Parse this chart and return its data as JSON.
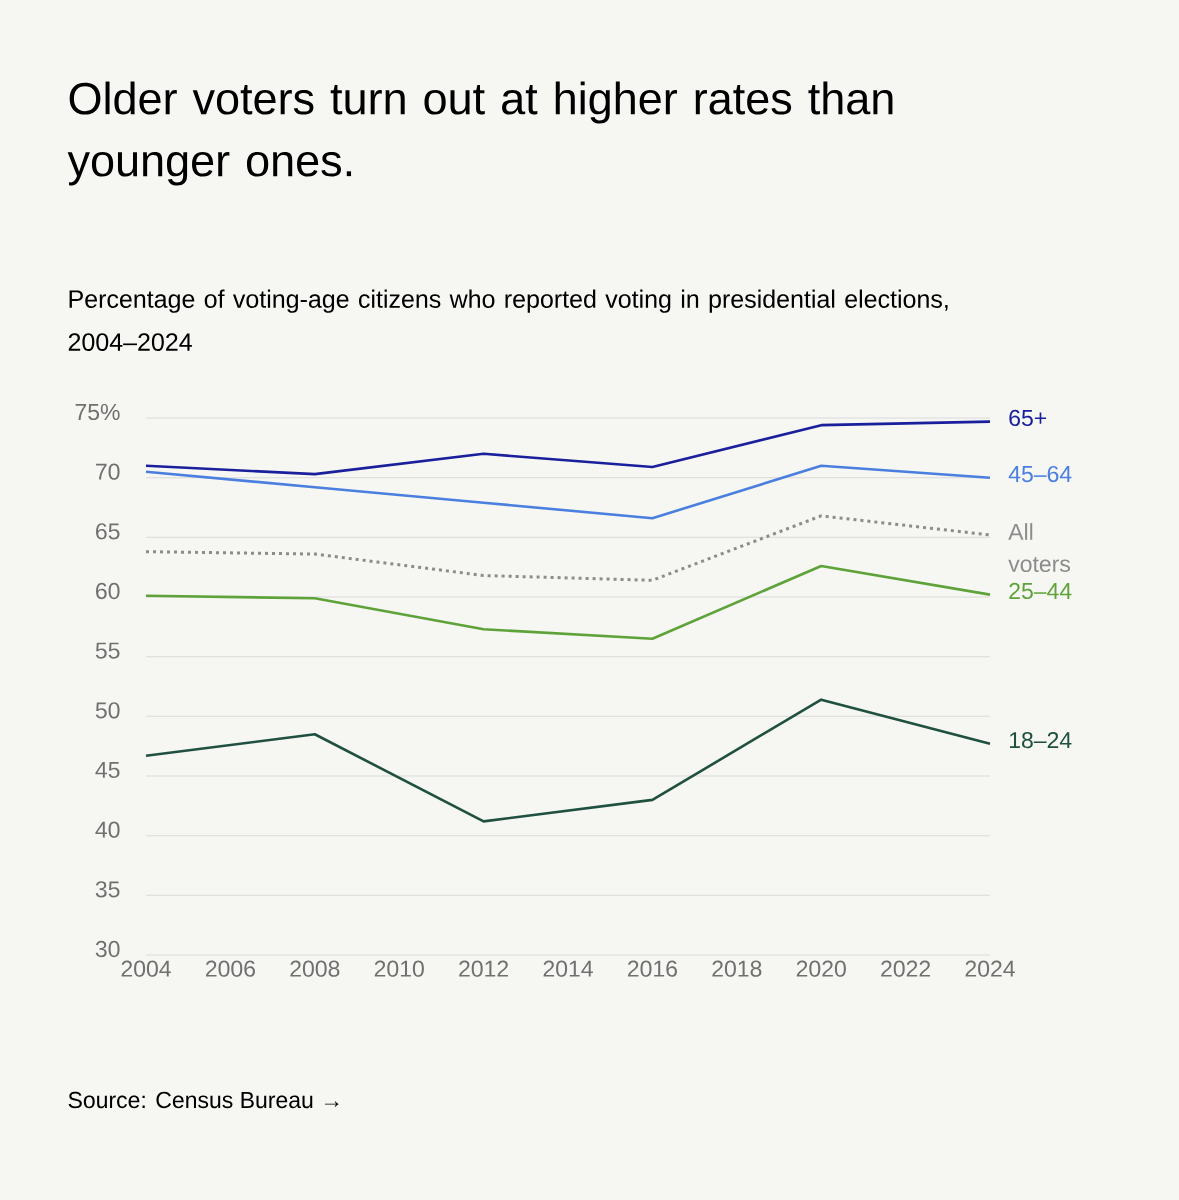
{
  "chart_data": {
    "type": "line",
    "title": "Older voters turn out at higher rates than younger ones.",
    "subtitle": "Percentage of voting-age citizens who reported voting in presidential elections, 2004–2024",
    "x": [
      2004,
      2008,
      2012,
      2016,
      2020,
      2024
    ],
    "series": [
      {
        "name": "65+",
        "color": "#1a1f9c",
        "values": [
          71.0,
          70.3,
          72.0,
          70.9,
          74.4,
          74.7
        ]
      },
      {
        "name": "45–64",
        "color": "#4a7fe0",
        "values": [
          70.5,
          69.2,
          67.9,
          66.6,
          71.0,
          70.0
        ]
      },
      {
        "name": "All voters",
        "color": "#8c8c8c",
        "line_style": "dotted",
        "values": [
          63.8,
          63.6,
          61.8,
          61.4,
          66.8,
          65.2
        ]
      },
      {
        "name": "25–44",
        "color": "#5ea33a",
        "values": [
          60.1,
          59.9,
          57.3,
          56.5,
          62.6,
          60.2
        ]
      },
      {
        "name": "18–24",
        "color": "#1f5040",
        "values": [
          46.7,
          48.5,
          41.2,
          43.0,
          51.4,
          47.7
        ]
      }
    ],
    "xlim": [
      2004,
      2024
    ],
    "xticks": [
      2004,
      2006,
      2008,
      2010,
      2012,
      2014,
      2016,
      2018,
      2020,
      2022,
      2024
    ],
    "ylim": [
      30,
      75
    ],
    "yticks": [
      {
        "value": 75,
        "label": "75%"
      },
      70,
      65,
      60,
      55,
      50,
      45,
      40,
      35,
      30
    ],
    "grid": "y",
    "marker": "none",
    "line_style": "solid",
    "annotations": [
      "Source: Census Bureau →"
    ]
  }
}
